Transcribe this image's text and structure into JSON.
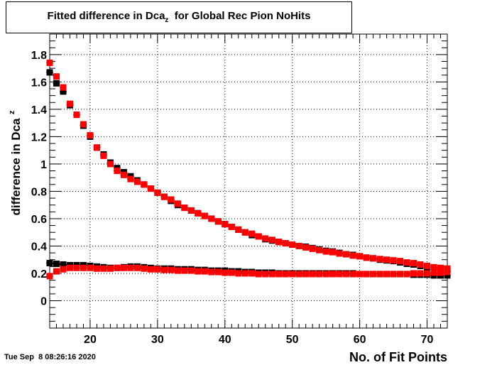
{
  "title": {
    "prefix": "Fitted difference in Dca",
    "subscript": "z",
    "suffix": "  for Global Rec Pion NoHits"
  },
  "timestamp": "Tue Sep  8 08:26:16 2020",
  "chart_data": {
    "type": "scatter",
    "xlabel": "No. of Fit Points",
    "ylabel": "difference in Dca",
    "ylabel_sub": "z",
    "xlim": [
      14,
      73
    ],
    "ylim": [
      -0.2,
      1.95
    ],
    "xticks": [
      20,
      30,
      40,
      50,
      60,
      70
    ],
    "yticks": [
      0,
      0.2,
      0.4,
      0.6,
      0.8,
      1,
      1.2,
      1.4,
      1.6,
      1.8
    ],
    "grid": true,
    "series": [
      {
        "color": "#000000",
        "points": [
          [
            14,
            1.67
          ],
          [
            15,
            1.59
          ],
          [
            16,
            1.53
          ],
          [
            17,
            1.43
          ],
          [
            18,
            1.36
          ],
          [
            19,
            1.28
          ],
          [
            20,
            1.2
          ],
          [
            21,
            1.12
          ],
          [
            22,
            1.07
          ],
          [
            23,
            1.01
          ],
          [
            24,
            0.97
          ],
          [
            25,
            0.94
          ],
          [
            26,
            0.91
          ],
          [
            27,
            0.88
          ],
          [
            28,
            0.85
          ],
          [
            29,
            0.82
          ],
          [
            30,
            0.79
          ],
          [
            31,
            0.76
          ],
          [
            32,
            0.73
          ],
          [
            33,
            0.7
          ],
          [
            34,
            0.68
          ],
          [
            35,
            0.66
          ],
          [
            36,
            0.64
          ],
          [
            37,
            0.62
          ],
          [
            38,
            0.6
          ],
          [
            39,
            0.58
          ],
          [
            40,
            0.56
          ],
          [
            41,
            0.54
          ],
          [
            42,
            0.52
          ],
          [
            43,
            0.5
          ],
          [
            44,
            0.48
          ],
          [
            45,
            0.47
          ],
          [
            46,
            0.45
          ],
          [
            47,
            0.44
          ],
          [
            48,
            0.43
          ],
          [
            49,
            0.42
          ],
          [
            50,
            0.41
          ],
          [
            51,
            0.4
          ],
          [
            52,
            0.395
          ],
          [
            53,
            0.385
          ],
          [
            54,
            0.375
          ],
          [
            55,
            0.365
          ],
          [
            56,
            0.36
          ],
          [
            57,
            0.35
          ],
          [
            58,
            0.34
          ],
          [
            59,
            0.335
          ],
          [
            60,
            0.325
          ],
          [
            61,
            0.315
          ],
          [
            62,
            0.31
          ],
          [
            63,
            0.3
          ],
          [
            64,
            0.295
          ],
          [
            65,
            0.29
          ],
          [
            66,
            0.28
          ],
          [
            67,
            0.27
          ],
          [
            68,
            0.265
          ],
          [
            69,
            0.255
          ],
          [
            70,
            0.245
          ],
          [
            71,
            0.23
          ],
          [
            72,
            0.225
          ],
          [
            73,
            0.22
          ]
        ]
      },
      {
        "color": "#ff0000",
        "points": [
          [
            14,
            1.74
          ],
          [
            15,
            1.64
          ],
          [
            16,
            1.56
          ],
          [
            17,
            1.44
          ],
          [
            18,
            1.36
          ],
          [
            19,
            1.29
          ],
          [
            20,
            1.21
          ],
          [
            21,
            1.12
          ],
          [
            22,
            1.06
          ],
          [
            23,
            1.0
          ],
          [
            24,
            0.95
          ],
          [
            25,
            0.92
          ],
          [
            26,
            0.89
          ],
          [
            27,
            0.87
          ],
          [
            28,
            0.85
          ],
          [
            29,
            0.82
          ],
          [
            30,
            0.79
          ],
          [
            31,
            0.76
          ],
          [
            32,
            0.74
          ],
          [
            33,
            0.71
          ],
          [
            34,
            0.68
          ],
          [
            35,
            0.66
          ],
          [
            36,
            0.64
          ],
          [
            37,
            0.62
          ],
          [
            38,
            0.6
          ],
          [
            39,
            0.58
          ],
          [
            40,
            0.56
          ],
          [
            41,
            0.54
          ],
          [
            42,
            0.52
          ],
          [
            43,
            0.5
          ],
          [
            44,
            0.49
          ],
          [
            45,
            0.47
          ],
          [
            46,
            0.455
          ],
          [
            47,
            0.445
          ],
          [
            48,
            0.43
          ],
          [
            49,
            0.42
          ],
          [
            50,
            0.41
          ],
          [
            51,
            0.4
          ],
          [
            52,
            0.39
          ],
          [
            53,
            0.38
          ],
          [
            54,
            0.37
          ],
          [
            55,
            0.36
          ],
          [
            56,
            0.355
          ],
          [
            57,
            0.345
          ],
          [
            58,
            0.34
          ],
          [
            59,
            0.33
          ],
          [
            60,
            0.325
          ],
          [
            61,
            0.315
          ],
          [
            62,
            0.31
          ],
          [
            63,
            0.305
          ],
          [
            64,
            0.3
          ],
          [
            65,
            0.295
          ],
          [
            66,
            0.29
          ],
          [
            67,
            0.28
          ],
          [
            68,
            0.275
          ],
          [
            69,
            0.265
          ],
          [
            70,
            0.255
          ],
          [
            71,
            0.245
          ],
          [
            72,
            0.24
          ],
          [
            73,
            0.235
          ]
        ]
      },
      {
        "color": "#000000",
        "points": [
          [
            14,
            0.275
          ],
          [
            15,
            0.27
          ],
          [
            16,
            0.265
          ],
          [
            17,
            0.26
          ],
          [
            18,
            0.26
          ],
          [
            19,
            0.26
          ],
          [
            20,
            0.255
          ],
          [
            21,
            0.25
          ],
          [
            22,
            0.245
          ],
          [
            23,
            0.24
          ],
          [
            24,
            0.24
          ],
          [
            25,
            0.245
          ],
          [
            26,
            0.25
          ],
          [
            27,
            0.25
          ],
          [
            28,
            0.245
          ],
          [
            29,
            0.24
          ],
          [
            30,
            0.235
          ],
          [
            31,
            0.235
          ],
          [
            32,
            0.235
          ],
          [
            33,
            0.23
          ],
          [
            34,
            0.23
          ],
          [
            35,
            0.23
          ],
          [
            36,
            0.225
          ],
          [
            37,
            0.225
          ],
          [
            38,
            0.22
          ],
          [
            39,
            0.22
          ],
          [
            40,
            0.22
          ],
          [
            41,
            0.215
          ],
          [
            42,
            0.215
          ],
          [
            43,
            0.21
          ],
          [
            44,
            0.21
          ],
          [
            45,
            0.205
          ],
          [
            46,
            0.205
          ],
          [
            47,
            0.205
          ],
          [
            48,
            0.2
          ],
          [
            49,
            0.2
          ],
          [
            50,
            0.2
          ],
          [
            51,
            0.2
          ],
          [
            52,
            0.2
          ],
          [
            53,
            0.2
          ],
          [
            54,
            0.2
          ],
          [
            55,
            0.2
          ],
          [
            56,
            0.2
          ],
          [
            57,
            0.2
          ],
          [
            58,
            0.2
          ],
          [
            59,
            0.2
          ],
          [
            60,
            0.195
          ],
          [
            61,
            0.195
          ],
          [
            62,
            0.195
          ],
          [
            63,
            0.195
          ],
          [
            64,
            0.195
          ],
          [
            65,
            0.195
          ],
          [
            66,
            0.195
          ],
          [
            67,
            0.195
          ],
          [
            68,
            0.19
          ],
          [
            69,
            0.19
          ],
          [
            70,
            0.19
          ],
          [
            71,
            0.185
          ],
          [
            72,
            0.185
          ],
          [
            73,
            0.185
          ]
        ]
      },
      {
        "color": "#ff0000",
        "points": [
          [
            14,
            0.18
          ],
          [
            15,
            0.215
          ],
          [
            16,
            0.23
          ],
          [
            17,
            0.24
          ],
          [
            18,
            0.24
          ],
          [
            19,
            0.24
          ],
          [
            20,
            0.24
          ],
          [
            21,
            0.235
          ],
          [
            22,
            0.235
          ],
          [
            23,
            0.235
          ],
          [
            24,
            0.24
          ],
          [
            25,
            0.24
          ],
          [
            26,
            0.24
          ],
          [
            27,
            0.24
          ],
          [
            28,
            0.235
          ],
          [
            29,
            0.23
          ],
          [
            30,
            0.23
          ],
          [
            31,
            0.225
          ],
          [
            32,
            0.225
          ],
          [
            33,
            0.22
          ],
          [
            34,
            0.22
          ],
          [
            35,
            0.22
          ],
          [
            36,
            0.215
          ],
          [
            37,
            0.215
          ],
          [
            38,
            0.21
          ],
          [
            39,
            0.21
          ],
          [
            40,
            0.205
          ],
          [
            41,
            0.205
          ],
          [
            42,
            0.2
          ],
          [
            43,
            0.2
          ],
          [
            44,
            0.2
          ],
          [
            45,
            0.195
          ],
          [
            46,
            0.195
          ],
          [
            47,
            0.195
          ],
          [
            48,
            0.195
          ],
          [
            49,
            0.195
          ],
          [
            50,
            0.195
          ],
          [
            51,
            0.195
          ],
          [
            52,
            0.195
          ],
          [
            53,
            0.195
          ],
          [
            54,
            0.195
          ],
          [
            55,
            0.195
          ],
          [
            56,
            0.195
          ],
          [
            57,
            0.195
          ],
          [
            58,
            0.195
          ],
          [
            59,
            0.195
          ],
          [
            60,
            0.195
          ],
          [
            61,
            0.195
          ],
          [
            62,
            0.195
          ],
          [
            63,
            0.195
          ],
          [
            64,
            0.195
          ],
          [
            65,
            0.195
          ],
          [
            66,
            0.195
          ],
          [
            67,
            0.195
          ],
          [
            68,
            0.2
          ],
          [
            69,
            0.2
          ],
          [
            70,
            0.2
          ],
          [
            71,
            0.205
          ],
          [
            72,
            0.205
          ],
          [
            73,
            0.21
          ]
        ]
      }
    ]
  }
}
